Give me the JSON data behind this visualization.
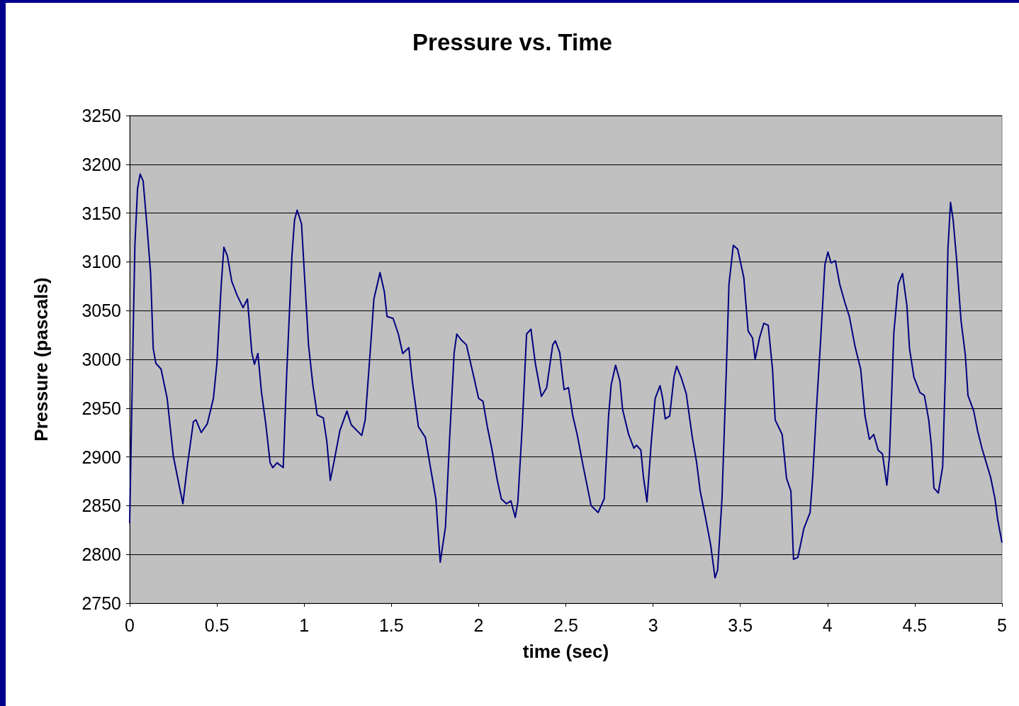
{
  "chart_data": {
    "type": "line",
    "title": "Pressure vs. Time",
    "xlabel": "time (sec)",
    "ylabel": "Pressure (pascals)",
    "xlim": [
      0,
      5
    ],
    "xticks": [
      0,
      0.5,
      1,
      1.5,
      2,
      2.5,
      3,
      3.5,
      4,
      4.5,
      5
    ],
    "ylim": [
      2750,
      3250
    ],
    "yticks": [
      2750,
      2800,
      2850,
      2900,
      2950,
      3000,
      3050,
      3100,
      3150,
      3200,
      3250
    ],
    "grid": "y",
    "marker": "none",
    "line_style": "solid",
    "x": [
      0,
      0.02,
      0.03,
      0.045,
      0.06,
      0.077,
      0.1,
      0.12,
      0.135,
      0.15,
      0.18,
      0.215,
      0.25,
      0.29,
      0.305,
      0.33,
      0.365,
      0.38,
      0.41,
      0.445,
      0.48,
      0.5,
      0.525,
      0.54,
      0.56,
      0.585,
      0.615,
      0.65,
      0.675,
      0.7,
      0.715,
      0.735,
      0.755,
      0.78,
      0.805,
      0.82,
      0.845,
      0.88,
      0.9,
      0.93,
      0.945,
      0.96,
      0.985,
      1.005,
      1.025,
      1.05,
      1.075,
      1.11,
      1.13,
      1.15,
      1.17,
      1.205,
      1.245,
      1.27,
      1.33,
      1.35,
      1.38,
      1.4,
      1.435,
      1.46,
      1.475,
      1.51,
      1.54,
      1.565,
      1.6,
      1.62,
      1.655,
      1.695,
      1.73,
      1.755,
      1.78,
      1.81,
      1.835,
      1.86,
      1.875,
      1.9,
      1.93,
      1.975,
      2,
      2.025,
      2.05,
      2.075,
      2.105,
      2.13,
      2.16,
      2.185,
      2.21,
      2.225,
      2.25,
      2.275,
      2.3,
      2.325,
      2.36,
      2.39,
      2.425,
      2.44,
      2.465,
      2.49,
      2.515,
      2.54,
      2.565,
      2.6,
      2.645,
      2.685,
      2.72,
      2.745,
      2.76,
      2.785,
      2.81,
      2.825,
      2.86,
      2.89,
      2.905,
      2.93,
      2.945,
      2.965,
      2.99,
      3.012,
      3.04,
      3.055,
      3.07,
      3.095,
      3.12,
      3.135,
      3.16,
      3.19,
      3.225,
      3.25,
      3.27,
      3.295,
      3.33,
      3.355,
      3.37,
      3.395,
      3.42,
      3.435,
      3.46,
      3.485,
      3.52,
      3.545,
      3.57,
      3.585,
      3.61,
      3.635,
      3.66,
      3.685,
      3.7,
      3.74,
      3.765,
      3.79,
      3.805,
      3.83,
      3.865,
      3.9,
      3.915,
      3.94,
      3.96,
      3.985,
      4.002,
      4.02,
      4.045,
      4.07,
      4.1,
      4.125,
      4.158,
      4.19,
      4.215,
      4.24,
      4.265,
      4.29,
      4.315,
      4.34,
      4.355,
      4.38,
      4.405,
      4.43,
      4.455,
      4.47,
      4.495,
      4.53,
      4.555,
      4.58,
      4.595,
      4.61,
      4.635,
      4.66,
      4.676,
      4.69,
      4.705,
      4.72,
      4.74,
      4.765,
      4.79,
      4.805,
      4.838,
      4.86,
      4.885,
      4.91,
      4.935,
      4.96,
      4.975,
      5
    ],
    "series": [
      {
        "color": "#000080",
        "values": [
          2832,
          3026,
          3117,
          3175,
          3190,
          3183,
          3135,
          3088,
          3011,
          2996,
          2990,
          2960,
          2901,
          2865,
          2852,
          2890,
          2936,
          2938,
          2925,
          2934,
          2960,
          2996,
          3077,
          3115,
          3106,
          3080,
          3066,
          3053,
          3062,
          3007,
          2995,
          3006,
          2967,
          2934,
          2894,
          2889,
          2894,
          2889,
          2985,
          3106,
          3143,
          3153,
          3139,
          3077,
          3015,
          2974,
          2943,
          2940,
          2916,
          2876,
          2894,
          2927,
          2947,
          2933,
          2922,
          2938,
          3011,
          3062,
          3089,
          3069,
          3044,
          3042,
          3026,
          3006,
          3012,
          2978,
          2931,
          2920,
          2883,
          2857,
          2792,
          2828,
          2923,
          3007,
          3026,
          3020,
          3015,
          2980,
          2960,
          2957,
          2931,
          2909,
          2878,
          2857,
          2852,
          2855,
          2838,
          2854,
          2931,
          3026,
          3031,
          2996,
          2962,
          2971,
          3015,
          3019,
          3007,
          2969,
          2971,
          2942,
          2923,
          2890,
          2850,
          2843,
          2857,
          2942,
          2974,
          2994,
          2978,
          2949,
          2923,
          2909,
          2912,
          2907,
          2879,
          2854,
          2916,
          2960,
          2973,
          2960,
          2939,
          2942,
          2982,
          2993,
          2982,
          2965,
          2920,
          2894,
          2865,
          2843,
          2810,
          2776,
          2784,
          2857,
          2989,
          3077,
          3117,
          3113,
          3084,
          3029,
          3022,
          3000,
          3022,
          3037,
          3035,
          2989,
          2938,
          2923,
          2878,
          2865,
          2795,
          2797,
          2827,
          2843,
          2879,
          2960,
          3018,
          3097,
          3110,
          3099,
          3101,
          3077,
          3058,
          3044,
          3013,
          2990,
          2942,
          2918,
          2923,
          2907,
          2903,
          2871,
          2901,
          3027,
          3077,
          3088,
          3055,
          3011,
          2982,
          2966,
          2963,
          2938,
          2912,
          2868,
          2863,
          2890,
          2989,
          3113,
          3161,
          3143,
          3102,
          3040,
          3004,
          2963,
          2947,
          2927,
          2909,
          2894,
          2879,
          2857,
          2836,
          2812
        ]
      }
    ]
  }
}
